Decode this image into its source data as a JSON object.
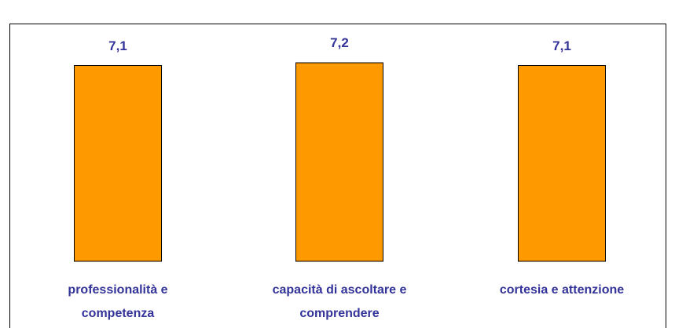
{
  "chart_data": {
    "type": "bar",
    "categories": [
      "professionalità e competenza",
      "capacità di ascoltare e comprendere",
      "cortesia e attenzione"
    ],
    "values": [
      7.1,
      7.2,
      7.1
    ],
    "value_labels": [
      "7,1",
      "7,2",
      "7,1"
    ],
    "color": "#ff9900"
  }
}
